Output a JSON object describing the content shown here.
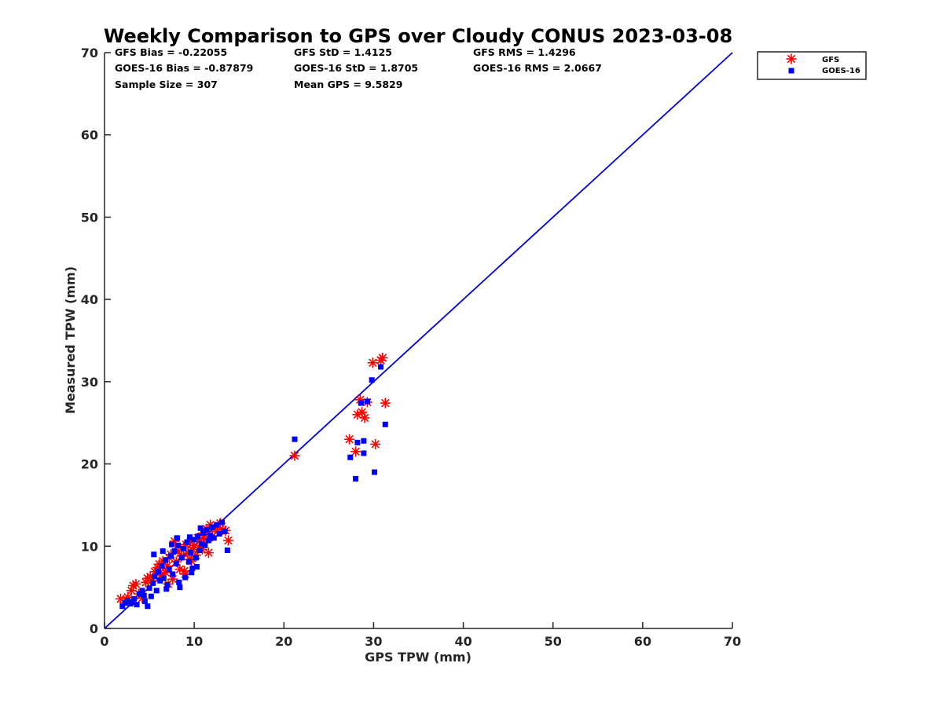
{
  "chart_data": {
    "type": "scatter",
    "title": "Weekly Comparison to GPS over Cloudy CONUS 2023-03-08",
    "xlabel": "GPS TPW (mm)",
    "ylabel": "Measured TPW (mm)",
    "xlim": [
      0,
      70
    ],
    "ylim": [
      0,
      70
    ],
    "xticks": [
      "0",
      "10",
      "20",
      "30",
      "40",
      "50",
      "60",
      "70"
    ],
    "yticks": [
      "0",
      "10",
      "20",
      "30",
      "40",
      "50",
      "60",
      "70"
    ],
    "grid": false,
    "legend_position": "outside-top-right",
    "one_to_one_line": {
      "from": [
        0,
        0
      ],
      "to": [
        70,
        70
      ],
      "color": "#0000dd"
    },
    "stats": [
      [
        "GFS Bias = -0.22055",
        "GFS StD = 1.4125",
        "GFS RMS = 1.4296"
      ],
      [
        "GOES-16 Bias = -0.87879",
        "GOES-16 StD = 1.8705",
        "GOES-16 RMS = 2.0667"
      ],
      [
        "Sample Size = 307",
        "Mean GPS = 9.5829",
        ""
      ]
    ],
    "series": [
      {
        "name": "GFS",
        "marker": "asterisk",
        "color": "#ff0000",
        "points": [
          [
            1.8,
            3.6
          ],
          [
            2.2,
            3.2
          ],
          [
            2.6,
            3.8
          ],
          [
            3.0,
            4.6
          ],
          [
            3.2,
            5.2
          ],
          [
            3.5,
            5.4
          ],
          [
            3.8,
            4.2
          ],
          [
            4.2,
            3.7
          ],
          [
            4.6,
            5.6
          ],
          [
            4.8,
            6.1
          ],
          [
            5.1,
            6.3
          ],
          [
            5.3,
            5.8
          ],
          [
            5.6,
            6.9
          ],
          [
            5.9,
            7.4
          ],
          [
            6.1,
            7.8
          ],
          [
            6.3,
            6.5
          ],
          [
            6.5,
            8.2
          ],
          [
            6.8,
            6.8
          ],
          [
            7.0,
            7.6
          ],
          [
            7.2,
            8.6
          ],
          [
            7.4,
            9.0
          ],
          [
            7.6,
            6.0
          ],
          [
            7.8,
            10.6
          ],
          [
            8.0,
            8.1
          ],
          [
            8.2,
            9.4
          ],
          [
            8.4,
            7.2
          ],
          [
            8.6,
            8.8
          ],
          [
            8.8,
            9.8
          ],
          [
            9.0,
            6.6
          ],
          [
            9.1,
            10.2
          ],
          [
            9.3,
            9.1
          ],
          [
            9.5,
            8.4
          ],
          [
            9.6,
            10.6
          ],
          [
            9.8,
            9.6
          ],
          [
            10.0,
            10.1
          ],
          [
            10.2,
            8.9
          ],
          [
            10.4,
            11.0
          ],
          [
            10.6,
            9.8
          ],
          [
            10.8,
            10.4
          ],
          [
            11.0,
            11.6
          ],
          [
            11.2,
            10.8
          ],
          [
            11.4,
            12.1
          ],
          [
            11.6,
            9.2
          ],
          [
            11.8,
            12.6
          ],
          [
            12.0,
            11.2
          ],
          [
            12.3,
            12.2
          ],
          [
            12.6,
            11.8
          ],
          [
            12.9,
            12.8
          ],
          [
            13.2,
            12.0
          ],
          [
            13.5,
            11.9
          ],
          [
            13.8,
            10.7
          ],
          [
            6.0,
            7.0
          ],
          [
            7.1,
            5.4
          ],
          [
            8.9,
            7.0
          ],
          [
            9.7,
            8.2
          ],
          [
            10.9,
            9.6
          ],
          [
            21.2,
            21.0
          ],
          [
            27.3,
            23.0
          ],
          [
            28.0,
            21.5
          ],
          [
            28.2,
            26.0
          ],
          [
            28.5,
            27.8
          ],
          [
            28.7,
            26.3
          ],
          [
            29.0,
            25.6
          ],
          [
            29.3,
            27.5
          ],
          [
            30.2,
            22.4
          ],
          [
            29.9,
            32.3
          ],
          [
            30.8,
            32.6
          ],
          [
            31.0,
            32.9
          ],
          [
            31.3,
            27.4
          ]
        ]
      },
      {
        "name": "GOES-16",
        "marker": "square",
        "color": "#0000ff",
        "points": [
          [
            2.0,
            2.7
          ],
          [
            2.3,
            3.1
          ],
          [
            2.6,
            3.4
          ],
          [
            2.9,
            3.0
          ],
          [
            3.3,
            3.6
          ],
          [
            3.6,
            2.9
          ],
          [
            3.9,
            4.2
          ],
          [
            4.2,
            4.6
          ],
          [
            4.5,
            3.3
          ],
          [
            4.8,
            2.7
          ],
          [
            5.0,
            4.9
          ],
          [
            5.2,
            3.9
          ],
          [
            5.4,
            5.5
          ],
          [
            5.6,
            6.3
          ],
          [
            5.8,
            4.6
          ],
          [
            6.0,
            6.9
          ],
          [
            6.2,
            5.8
          ],
          [
            6.4,
            7.6
          ],
          [
            6.6,
            6.1
          ],
          [
            6.8,
            8.3
          ],
          [
            7.0,
            5.3
          ],
          [
            7.2,
            7.2
          ],
          [
            7.4,
            8.8
          ],
          [
            7.6,
            6.6
          ],
          [
            7.8,
            9.4
          ],
          [
            8.0,
            7.9
          ],
          [
            8.2,
            10.1
          ],
          [
            8.4,
            5.0
          ],
          [
            8.6,
            8.6
          ],
          [
            8.8,
            9.7
          ],
          [
            9.0,
            6.2
          ],
          [
            9.2,
            10.5
          ],
          [
            9.4,
            8.1
          ],
          [
            9.6,
            9.2
          ],
          [
            9.8,
            7.3
          ],
          [
            10.0,
            10.8
          ],
          [
            10.2,
            8.6
          ],
          [
            10.4,
            11.2
          ],
          [
            10.6,
            9.5
          ],
          [
            10.8,
            10.3
          ],
          [
            11.0,
            11.6
          ],
          [
            11.2,
            10.1
          ],
          [
            11.4,
            12.0
          ],
          [
            11.6,
            10.7
          ],
          [
            11.8,
            11.3
          ],
          [
            12.0,
            12.3
          ],
          [
            12.2,
            11.0
          ],
          [
            12.5,
            12.6
          ],
          [
            12.8,
            11.5
          ],
          [
            13.1,
            12.9
          ],
          [
            13.4,
            11.8
          ],
          [
            13.7,
            9.5
          ],
          [
            5.5,
            9.0
          ],
          [
            6.5,
            9.4
          ],
          [
            7.5,
            10.2
          ],
          [
            8.1,
            11.0
          ],
          [
            9.5,
            11.1
          ],
          [
            10.7,
            12.2
          ],
          [
            4.4,
            4.0
          ],
          [
            3.1,
            3.2
          ],
          [
            6.9,
            4.8
          ],
          [
            8.3,
            5.6
          ],
          [
            9.7,
            6.8
          ],
          [
            10.3,
            7.5
          ],
          [
            21.2,
            23.0
          ],
          [
            27.4,
            20.8
          ],
          [
            28.0,
            18.2
          ],
          [
            28.2,
            22.6
          ],
          [
            28.6,
            27.4
          ],
          [
            28.9,
            21.3
          ],
          [
            28.9,
            22.8
          ],
          [
            29.3,
            27.6
          ],
          [
            29.8,
            30.2
          ],
          [
            30.1,
            19.0
          ],
          [
            30.8,
            31.8
          ],
          [
            31.3,
            24.8
          ]
        ]
      }
    ]
  }
}
